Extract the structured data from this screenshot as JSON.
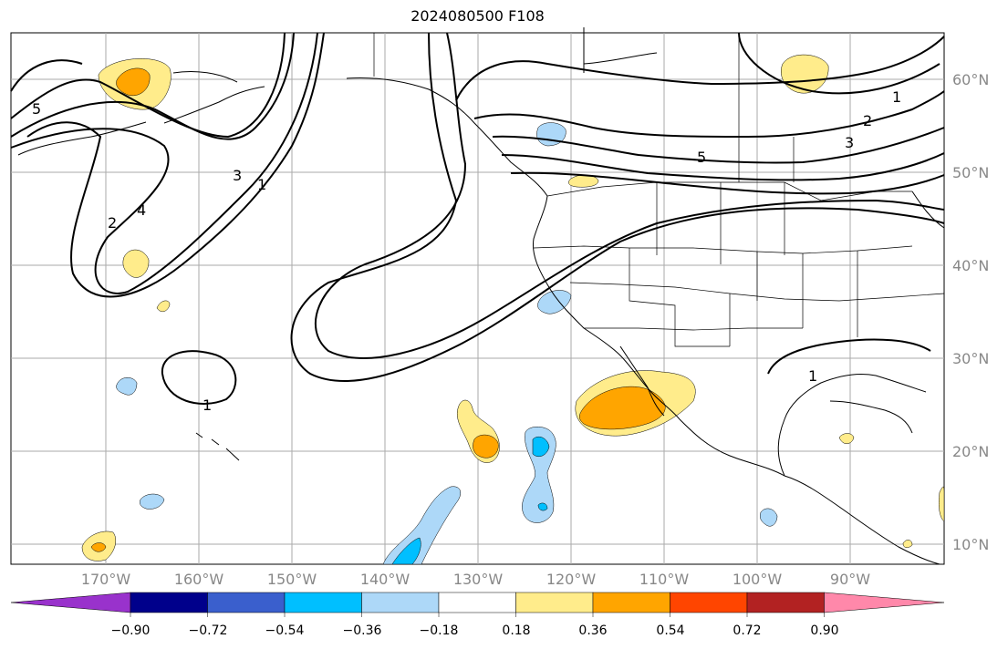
{
  "title": "2024080500 F108",
  "latitude_labels": [
    "60°N",
    "50°N",
    "40°N",
    "30°N",
    "20°N",
    "10°N"
  ],
  "longitude_labels": [
    "170°W",
    "160°W",
    "150°W",
    "140°W",
    "130°W",
    "120°W",
    "110°W",
    "100°W",
    "90°W"
  ],
  "contour_labels": [
    "1",
    "2",
    "3",
    "4",
    "5"
  ],
  "colorbar": {
    "tick_labels": [
      "−0.90",
      "−0.72",
      "−0.54",
      "−0.36",
      "−0.18",
      "0.18",
      "0.36",
      "0.54",
      "0.72",
      "0.90"
    ],
    "colors": [
      "#9932cc",
      "#00008b",
      "#3a5fcd",
      "#00bfff",
      "#add8f8",
      "#ffffff",
      "#ffec8b",
      "#ffa500",
      "#ff4500",
      "#b22222",
      "#ff88aa"
    ]
  }
}
